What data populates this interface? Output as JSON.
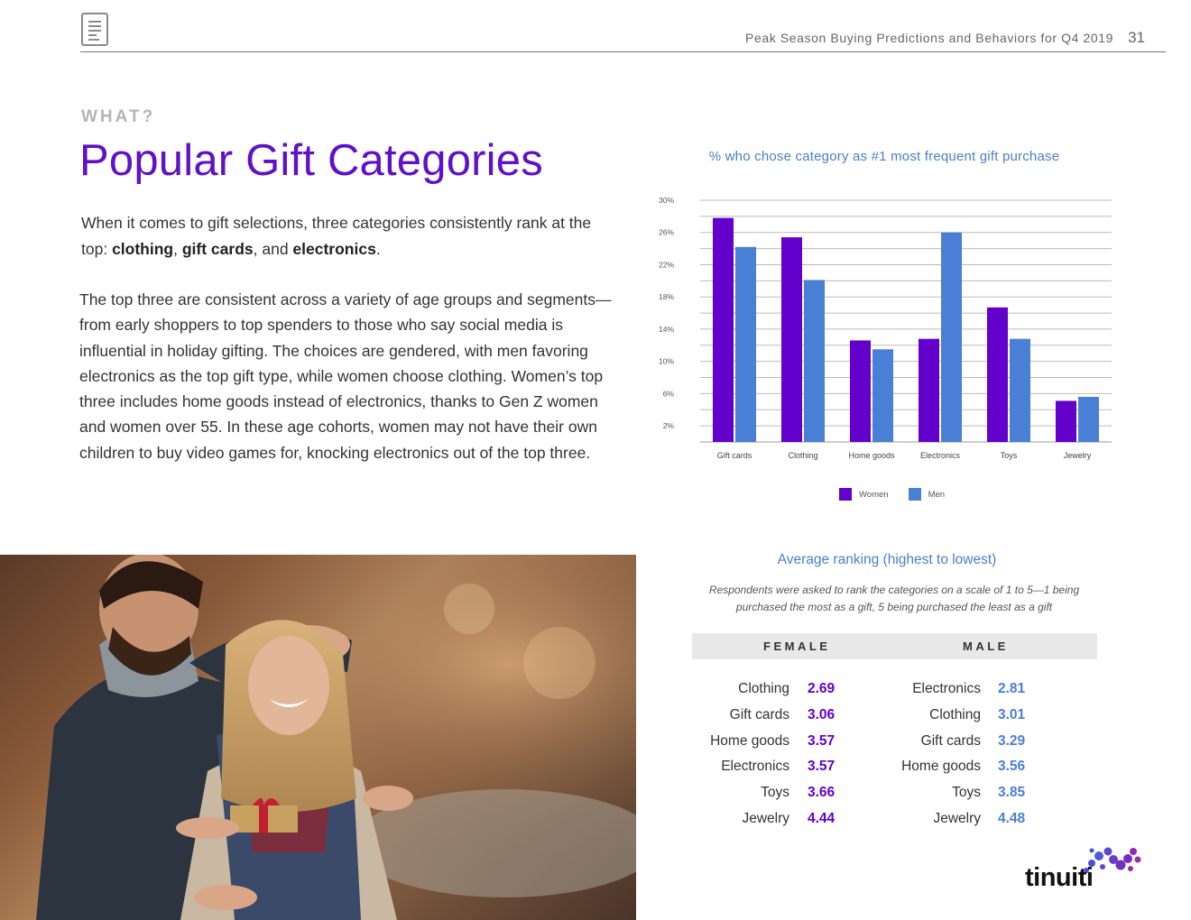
{
  "header": {
    "title": "Peak Season Buying Predictions and Behaviors for Q4 2019",
    "page_number": "31"
  },
  "section_label": "WHAT?",
  "page_title": "Popular Gift Categories",
  "intro": {
    "text1": "When it comes to gift selections, three categories consistently rank at the top: ",
    "bold1": "clothing",
    "sep1": ", ",
    "bold2": "gift cards",
    "sep2": ", and ",
    "bold3": "electronics",
    "end": "."
  },
  "body_text": "The top three are consistent across a variety of age groups and segments—from early shoppers to top spenders to those who say social media is influential in holiday gifting. The choices are gendered, with men favoring electronics as the top gift type, while women choose clothing. Women’s top three includes home goods instead of electronics, thanks to Gen Z women and women over 55. In these age cohorts, women may not have their own children to buy video games for, knocking electronics out of the top three.",
  "chart_data": {
    "type": "bar",
    "title": "% who chose category as #1 most frequent gift purchase",
    "categories": [
      "Gift cards",
      "Clothing",
      "Home goods",
      "Electronics",
      "Toys",
      "Jewelry"
    ],
    "series": [
      {
        "name": "Women",
        "values": [
          27.8,
          25.4,
          12.6,
          12.8,
          16.7,
          5.1
        ]
      },
      {
        "name": "Men",
        "values": [
          24.2,
          20.1,
          11.5,
          26.0,
          12.8,
          5.6
        ]
      }
    ],
    "yticks": [
      "2%",
      "6%",
      "10%",
      "14%",
      "18%",
      "22%",
      "26%",
      "30%"
    ],
    "ylim": [
      0,
      30
    ],
    "legend_position": "bottom",
    "colors": {
      "Women": "#6300cc",
      "Men": "#4a7fd6"
    }
  },
  "ranking": {
    "title": "Average ranking (highest to lowest)",
    "note": "Respondents were asked to rank the categories on a scale of 1 to 5—1 being purchased the most as a gift, 5 being purchased the least as  a gift",
    "female_label": "FEMALE",
    "male_label": "MALE",
    "female": [
      {
        "category": "Clothing",
        "value": "2.69"
      },
      {
        "category": "Gift cards",
        "value": "3.06"
      },
      {
        "category": "Home goods",
        "value": "3.57"
      },
      {
        "category": "Electronics",
        "value": "3.57"
      },
      {
        "category": "Toys",
        "value": "3.66"
      },
      {
        "category": "Jewelry",
        "value": "4.44"
      }
    ],
    "male": [
      {
        "category": "Electronics",
        "value": "2.81"
      },
      {
        "category": "Clothing",
        "value": "3.01"
      },
      {
        "category": "Gift cards",
        "value": "3.29"
      },
      {
        "category": "Home goods",
        "value": "3.56"
      },
      {
        "category": "Toys",
        "value": "3.85"
      },
      {
        "category": "Jewelry",
        "value": "4.48"
      }
    ],
    "colors": {
      "female": "#6300cc",
      "male": "#4a7fd6"
    }
  },
  "logo": {
    "text": "tinuiti"
  },
  "icons": {
    "header": "document-icon"
  }
}
